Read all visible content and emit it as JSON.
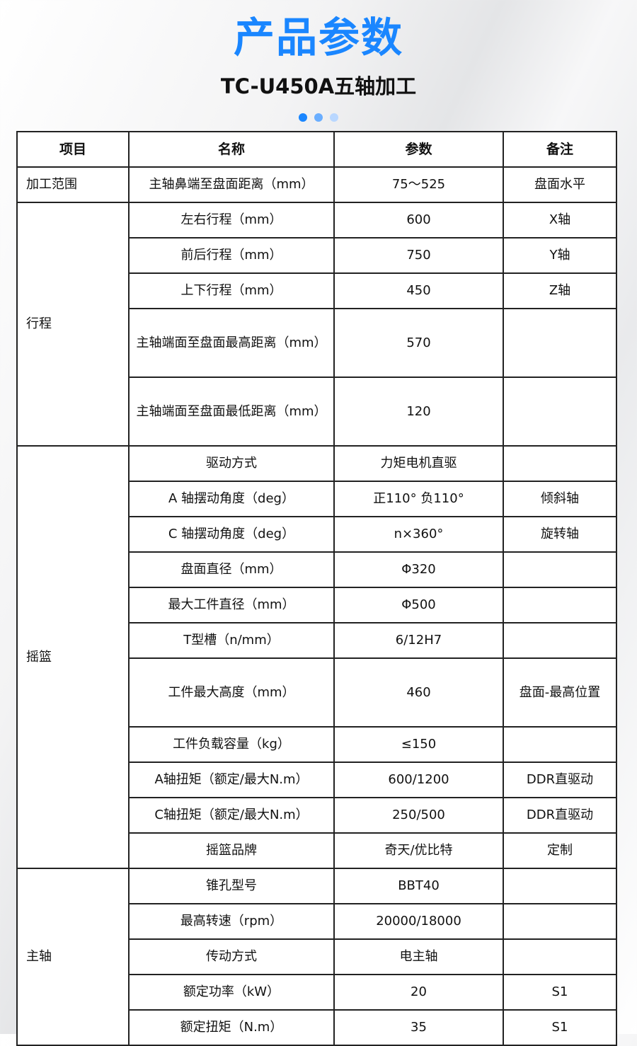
{
  "header": {
    "title": "产品参数",
    "subtitle": "TC-U450A五轴加工",
    "dots": [
      "#1a86ff",
      "#6aaeff",
      "#b9d7ff"
    ],
    "title_color": "#1a86ff"
  },
  "table": {
    "columns": [
      "项目",
      "名称",
      "参数",
      "备注"
    ],
    "groups": [
      {
        "label": "加工范围",
        "rows": [
          {
            "name": "主轴鼻端至盘面距离（mm）",
            "value": "75～525",
            "note": "盘面水平"
          }
        ]
      },
      {
        "label": "行程",
        "rows": [
          {
            "name": "左右行程（mm）",
            "value": "600",
            "note": "X轴"
          },
          {
            "name": "前后行程（mm）",
            "value": "750",
            "note": "Y轴"
          },
          {
            "name": "上下行程（mm）",
            "value": "450",
            "note": "Z轴"
          },
          {
            "name": "主轴端面至盘面最高距离（mm）",
            "value": "570",
            "note": ""
          },
          {
            "name": "主轴端面至盘面最低距离（mm）",
            "value": "120",
            "note": ""
          }
        ]
      },
      {
        "label": "摇篮",
        "rows": [
          {
            "name": "驱动方式",
            "value": "力矩电机直驱",
            "note": ""
          },
          {
            "name": "A 轴摆动角度（deg）",
            "value": "正110° 负110°",
            "note": "倾斜轴"
          },
          {
            "name": "C 轴摆动角度（deg）",
            "value": "n×360°",
            "note": "旋转轴"
          },
          {
            "name": "盘面直径（mm）",
            "value": "Φ320",
            "note": ""
          },
          {
            "name": "最大工件直径（mm）",
            "value": "Φ500",
            "note": ""
          },
          {
            "name": "T型槽（n/mm）",
            "value": "6/12H7",
            "note": ""
          },
          {
            "name": "工件最大高度（mm）",
            "value": "460",
            "note": "盘面-最高位置"
          },
          {
            "name": "工件负载容量（kg）",
            "value": "≤150",
            "note": ""
          },
          {
            "name": "A轴扭矩（额定/最大N.m）",
            "value": "600/1200",
            "note": "DDR直驱动"
          },
          {
            "name": "C轴扭矩（额定/最大N.m）",
            "value": "250/500",
            "note": "DDR直驱动"
          },
          {
            "name": "摇篮品牌",
            "value": "奇天/优比特",
            "note": "定制"
          }
        ]
      },
      {
        "label": "主轴",
        "rows": [
          {
            "name": "锥孔型号",
            "value": "BBT40",
            "note": ""
          },
          {
            "name": "最高转速（rpm）",
            "value": "20000/18000",
            "note": ""
          },
          {
            "name": "传动方式",
            "value": "电主轴",
            "note": ""
          },
          {
            "name": "额定功率（kW）",
            "value": "20",
            "note": "S1"
          },
          {
            "name": "额定扭矩（N.m）",
            "value": "35",
            "note": "S1"
          }
        ]
      }
    ]
  }
}
